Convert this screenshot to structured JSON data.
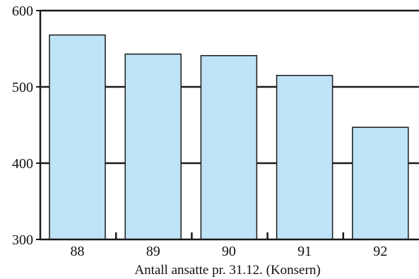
{
  "chart_data": {
    "type": "bar",
    "categories": [
      "88",
      "89",
      "90",
      "91",
      "92"
    ],
    "values": [
      568,
      543,
      541,
      515,
      447
    ],
    "title": "",
    "xlabel": "Antall ansatte pr. 31.12. (Konsern)",
    "ylabel": "",
    "ylim": [
      300,
      600
    ],
    "yticks": [
      300,
      400,
      500,
      600
    ],
    "grid": true,
    "legend": "none"
  },
  "colors": {
    "bar_fill": "#bfe3f7",
    "bar_stroke": "#1a1a1a",
    "grid": "#1a1a1a",
    "axis": "#1a1a1a"
  }
}
